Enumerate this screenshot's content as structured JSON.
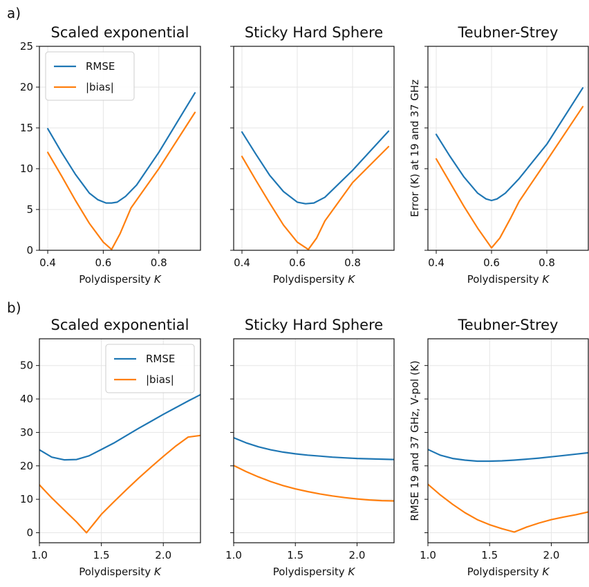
{
  "figure_labels": [
    "a)",
    "b)"
  ],
  "colors": {
    "RMSE": "#1f77b4",
    "bias": "#ff7f0e"
  },
  "chart_data": [
    {
      "type": "line",
      "row": 0,
      "col": 0,
      "title": "Scaled exponential",
      "xlabel": "Polydispersity K",
      "ylabel": "",
      "xlim": [
        0.37,
        0.95
      ],
      "ylim": [
        0,
        25
      ],
      "xticks": [
        0.4,
        0.6,
        0.8
      ],
      "xtick_labels": [
        "0.4",
        "0.6",
        "0.8"
      ],
      "yticks": [
        0,
        5,
        10,
        15,
        20,
        25
      ],
      "ytick_labels": [
        "0",
        "5",
        "10",
        "15",
        "20",
        "25"
      ],
      "legend": true,
      "legend_position": "top-left",
      "series": [
        {
          "name": "RMSE",
          "x": [
            0.4,
            0.45,
            0.5,
            0.55,
            0.58,
            0.61,
            0.63,
            0.65,
            0.68,
            0.72,
            0.8,
            0.93
          ],
          "y": [
            14.9,
            12.0,
            9.3,
            7.0,
            6.2,
            5.8,
            5.8,
            5.9,
            6.6,
            8.0,
            12.0,
            19.3
          ]
        },
        {
          "name": "|bias|",
          "x": [
            0.4,
            0.45,
            0.5,
            0.55,
            0.6,
            0.63,
            0.66,
            0.7,
            0.8,
            0.93
          ],
          "y": [
            12.0,
            9.1,
            6.1,
            3.3,
            1.0,
            0.1,
            2.0,
            5.2,
            10.0,
            16.9
          ]
        }
      ]
    },
    {
      "type": "line",
      "row": 0,
      "col": 1,
      "title": "Sticky Hard Sphere",
      "xlabel": "Polydispersity K",
      "ylabel": "",
      "xlim": [
        0.37,
        0.95
      ],
      "ylim": [
        0,
        25
      ],
      "xticks": [
        0.4,
        0.6,
        0.8
      ],
      "xtick_labels": [
        "0.4",
        "0.6",
        "0.8"
      ],
      "yticks": [
        0,
        5,
        10,
        15,
        20,
        25
      ],
      "ytick_labels": [],
      "legend": false,
      "series": [
        {
          "name": "RMSE",
          "x": [
            0.4,
            0.45,
            0.5,
            0.55,
            0.6,
            0.63,
            0.66,
            0.7,
            0.8,
            0.93
          ],
          "y": [
            14.5,
            11.8,
            9.2,
            7.2,
            5.9,
            5.7,
            5.8,
            6.5,
            9.8,
            14.6
          ]
        },
        {
          "name": "|bias|",
          "x": [
            0.4,
            0.45,
            0.5,
            0.55,
            0.6,
            0.64,
            0.67,
            0.7,
            0.8,
            0.93
          ],
          "y": [
            11.5,
            8.6,
            5.8,
            3.1,
            1.0,
            0.1,
            1.5,
            3.6,
            8.3,
            12.7
          ]
        }
      ]
    },
    {
      "type": "line",
      "row": 0,
      "col": 2,
      "title": "Teubner-Strey",
      "xlabel": "Polydispersity K",
      "ylabel": "Error (K) at 19 and 37 GHz",
      "xlim": [
        0.37,
        0.95
      ],
      "ylim": [
        0,
        25
      ],
      "xticks": [
        0.4,
        0.6,
        0.8
      ],
      "xtick_labels": [
        "0.4",
        "0.6",
        "0.8"
      ],
      "yticks": [
        0,
        5,
        10,
        15,
        20,
        25
      ],
      "ytick_labels": [],
      "legend": false,
      "series": [
        {
          "name": "RMSE",
          "x": [
            0.4,
            0.45,
            0.5,
            0.55,
            0.58,
            0.6,
            0.62,
            0.65,
            0.7,
            0.8,
            0.93
          ],
          "y": [
            14.2,
            11.5,
            9.0,
            7.0,
            6.3,
            6.1,
            6.3,
            7.0,
            8.8,
            13.0,
            19.9
          ]
        },
        {
          "name": "|bias|",
          "x": [
            0.4,
            0.45,
            0.5,
            0.55,
            0.6,
            0.63,
            0.67,
            0.7,
            0.8,
            0.93
          ],
          "y": [
            11.2,
            8.3,
            5.4,
            2.7,
            0.3,
            1.5,
            4.0,
            6.0,
            11.0,
            17.6
          ]
        }
      ]
    },
    {
      "type": "line",
      "row": 1,
      "col": 0,
      "title": "Scaled exponential",
      "xlabel": "Polydispersity K",
      "ylabel": "",
      "xlim": [
        1.0,
        2.3
      ],
      "ylim": [
        -3,
        58
      ],
      "xticks": [
        1.0,
        1.5,
        2.0
      ],
      "xtick_labels": [
        "1.0",
        "1.5",
        "2.0"
      ],
      "yticks": [
        0,
        10,
        20,
        30,
        40,
        50
      ],
      "ytick_labels": [
        "0",
        "10",
        "20",
        "30",
        "40",
        "50"
      ],
      "legend": true,
      "legend_position": "top-right",
      "series": [
        {
          "name": "RMSE",
          "x": [
            1.0,
            1.1,
            1.2,
            1.3,
            1.4,
            1.5,
            1.6,
            1.7,
            1.8,
            1.9,
            2.0,
            2.1,
            2.2,
            2.3
          ],
          "y": [
            24.8,
            22.6,
            21.8,
            21.9,
            23.0,
            24.9,
            26.8,
            29.0,
            31.2,
            33.3,
            35.4,
            37.4,
            39.4,
            41.3
          ]
        },
        {
          "name": "|bias|",
          "x": [
            1.0,
            1.1,
            1.2,
            1.3,
            1.38,
            1.45,
            1.5,
            1.6,
            1.7,
            1.8,
            1.9,
            2.0,
            2.1,
            2.2,
            2.3
          ],
          "y": [
            14.3,
            10.4,
            6.8,
            3.2,
            0.0,
            3.2,
            5.5,
            9.2,
            12.8,
            16.3,
            19.6,
            22.8,
            25.9,
            28.6,
            29.1
          ]
        }
      ]
    },
    {
      "type": "line",
      "row": 1,
      "col": 1,
      "title": "Sticky Hard Sphere",
      "xlabel": "Polydispersity K",
      "ylabel": "",
      "xlim": [
        1.0,
        2.3
      ],
      "ylim": [
        -3,
        58
      ],
      "xticks": [
        1.0,
        1.5,
        2.0
      ],
      "xtick_labels": [
        "1.0",
        "1.5",
        "2.0"
      ],
      "yticks": [
        0,
        10,
        20,
        30,
        40,
        50
      ],
      "ytick_labels": [],
      "legend": false,
      "series": [
        {
          "name": "RMSE",
          "x": [
            1.0,
            1.1,
            1.2,
            1.3,
            1.4,
            1.5,
            1.6,
            1.7,
            1.8,
            1.9,
            2.0,
            2.1,
            2.2,
            2.3
          ],
          "y": [
            28.4,
            26.9,
            25.7,
            24.8,
            24.1,
            23.6,
            23.2,
            22.9,
            22.6,
            22.4,
            22.2,
            22.1,
            22.0,
            21.9
          ]
        },
        {
          "name": "|bias|",
          "x": [
            1.0,
            1.1,
            1.2,
            1.3,
            1.4,
            1.5,
            1.6,
            1.7,
            1.8,
            1.9,
            2.0,
            2.1,
            2.2,
            2.3
          ],
          "y": [
            20.1,
            18.3,
            16.7,
            15.3,
            14.1,
            13.1,
            12.3,
            11.6,
            11.0,
            10.5,
            10.1,
            9.8,
            9.6,
            9.5
          ]
        }
      ]
    },
    {
      "type": "line",
      "row": 1,
      "col": 2,
      "title": "Teubner-Strey",
      "xlabel": "Polydispersity K",
      "ylabel": "RMSE 19 and 37 GHz, V-pol (K)",
      "xlim": [
        1.0,
        2.3
      ],
      "ylim": [
        -3,
        58
      ],
      "xticks": [
        1.0,
        1.5,
        2.0
      ],
      "xtick_labels": [
        "1.0",
        "1.5",
        "2.0"
      ],
      "yticks": [
        0,
        10,
        20,
        30,
        40,
        50
      ],
      "ytick_labels": [],
      "legend": false,
      "series": [
        {
          "name": "RMSE",
          "x": [
            1.0,
            1.1,
            1.2,
            1.3,
            1.4,
            1.5,
            1.6,
            1.7,
            1.8,
            1.9,
            2.0,
            2.1,
            2.2,
            2.3
          ],
          "y": [
            24.9,
            23.2,
            22.2,
            21.7,
            21.4,
            21.4,
            21.5,
            21.7,
            22.0,
            22.3,
            22.7,
            23.1,
            23.5,
            23.9
          ]
        },
        {
          "name": "|bias|",
          "x": [
            1.0,
            1.1,
            1.2,
            1.3,
            1.4,
            1.5,
            1.6,
            1.7,
            1.8,
            1.9,
            2.0,
            2.1,
            2.2,
            2.3
          ],
          "y": [
            14.5,
            11.3,
            8.5,
            6.0,
            3.9,
            2.4,
            1.2,
            0.2,
            1.7,
            2.9,
            3.9,
            4.7,
            5.4,
            6.2
          ]
        }
      ]
    }
  ]
}
